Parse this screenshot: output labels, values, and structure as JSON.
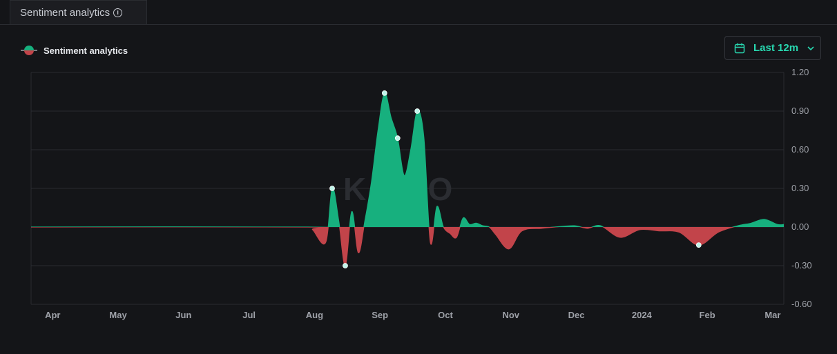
{
  "tab": {
    "label": "Sentiment analytics"
  },
  "legend": {
    "label": "Sentiment analytics"
  },
  "range_button": {
    "label": "Last 12m"
  },
  "watermark": "KAITO",
  "colors": {
    "positive": "#17b07e",
    "negative": "#c2444a",
    "accent": "#28d8b0",
    "grid": "#2a2c31",
    "marker": "#bff5ea"
  },
  "chart_data": {
    "type": "area",
    "series": [
      {
        "name": "Sentiment analytics",
        "x": [
          0,
          4.2,
          4.3,
          4.5,
          4.6,
          4.7,
          4.8,
          4.9,
          5.0,
          5.1,
          5.2,
          5.3,
          5.4,
          5.5,
          5.6,
          5.7,
          5.8,
          5.9,
          6.0,
          6.1,
          6.2,
          6.3,
          6.4,
          6.5,
          6.6,
          6.7,
          6.8,
          6.9,
          7.0,
          7.1,
          7.3,
          7.5,
          7.8,
          8.0,
          8.3,
          8.5,
          8.7,
          9.0,
          9.3,
          9.6,
          9.9,
          10.2,
          10.5,
          10.8,
          11.0,
          11.2,
          11.4,
          11.5
        ],
        "y": [
          0,
          0,
          -0.02,
          -0.12,
          0.3,
          0.05,
          -0.3,
          0.12,
          -0.2,
          0.05,
          0.35,
          0.75,
          1.04,
          0.85,
          0.69,
          0.4,
          0.6,
          0.9,
          0.7,
          -0.12,
          0.16,
          0.0,
          -0.05,
          -0.08,
          0.07,
          0.02,
          0.03,
          0.01,
          0.0,
          -0.06,
          -0.17,
          -0.03,
          -0.01,
          0.0,
          0.01,
          -0.01,
          0.01,
          -0.08,
          -0.02,
          -0.03,
          -0.04,
          -0.14,
          -0.04,
          0.01,
          0.03,
          0.06,
          0.02,
          0.02
        ]
      }
    ],
    "markers": [
      {
        "x": 4.6,
        "y": 0.3
      },
      {
        "x": 4.8,
        "y": -0.3
      },
      {
        "x": 5.4,
        "y": 1.04
      },
      {
        "x": 5.6,
        "y": 0.69
      },
      {
        "x": 5.9,
        "y": 0.9
      },
      {
        "x": 10.2,
        "y": -0.14
      }
    ],
    "x_ticks": [
      {
        "x": 0.33,
        "label": "Apr"
      },
      {
        "x": 1.33,
        "label": "May"
      },
      {
        "x": 2.33,
        "label": "Jun"
      },
      {
        "x": 3.33,
        "label": "Jul"
      },
      {
        "x": 4.33,
        "label": "Aug"
      },
      {
        "x": 5.33,
        "label": "Sep"
      },
      {
        "x": 6.33,
        "label": "Oct"
      },
      {
        "x": 7.33,
        "label": "Nov"
      },
      {
        "x": 8.33,
        "label": "Dec"
      },
      {
        "x": 9.33,
        "label": "2024"
      },
      {
        "x": 10.33,
        "label": "Feb"
      },
      {
        "x": 11.33,
        "label": "Mar"
      }
    ],
    "y_ticks": [
      {
        "v": 1.2,
        "label": "1.20"
      },
      {
        "v": 0.9,
        "label": "0.90"
      },
      {
        "v": 0.6,
        "label": "0.60"
      },
      {
        "v": 0.3,
        "label": "0.30"
      },
      {
        "v": 0.0,
        "label": "0.00"
      },
      {
        "v": -0.3,
        "label": "-0.30"
      },
      {
        "v": -0.6,
        "label": "-0.60"
      }
    ],
    "xlim": [
      0,
      11.5
    ],
    "ylim": [
      -0.6,
      1.2
    ],
    "grid": true,
    "legend_position": "top-left"
  }
}
